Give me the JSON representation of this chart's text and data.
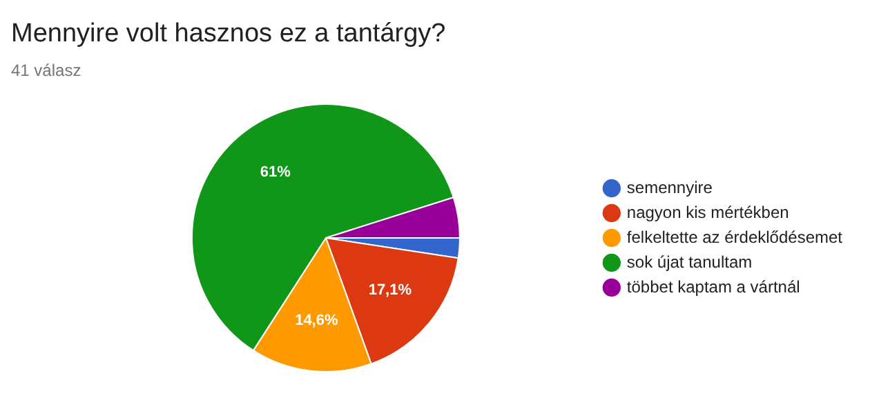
{
  "chart_data": {
    "type": "pie",
    "title": "Mennyire volt hasznos ez a tantárgy?",
    "subtitle": "41 válasz",
    "categories": [
      "semennyire",
      "nagyon kis mértékben",
      "felkeltette az érdeklődésemet",
      "sok újat tanultam",
      "többet kaptam a vártnál"
    ],
    "values": [
      2.4,
      17.1,
      14.6,
      61,
      4.9
    ],
    "colors": [
      "#3366cc",
      "#dc3912",
      "#ff9900",
      "#109618",
      "#990099"
    ],
    "value_labels": [
      null,
      "17,1%",
      "14,6%",
      "61%",
      null
    ],
    "legend": "right"
  }
}
